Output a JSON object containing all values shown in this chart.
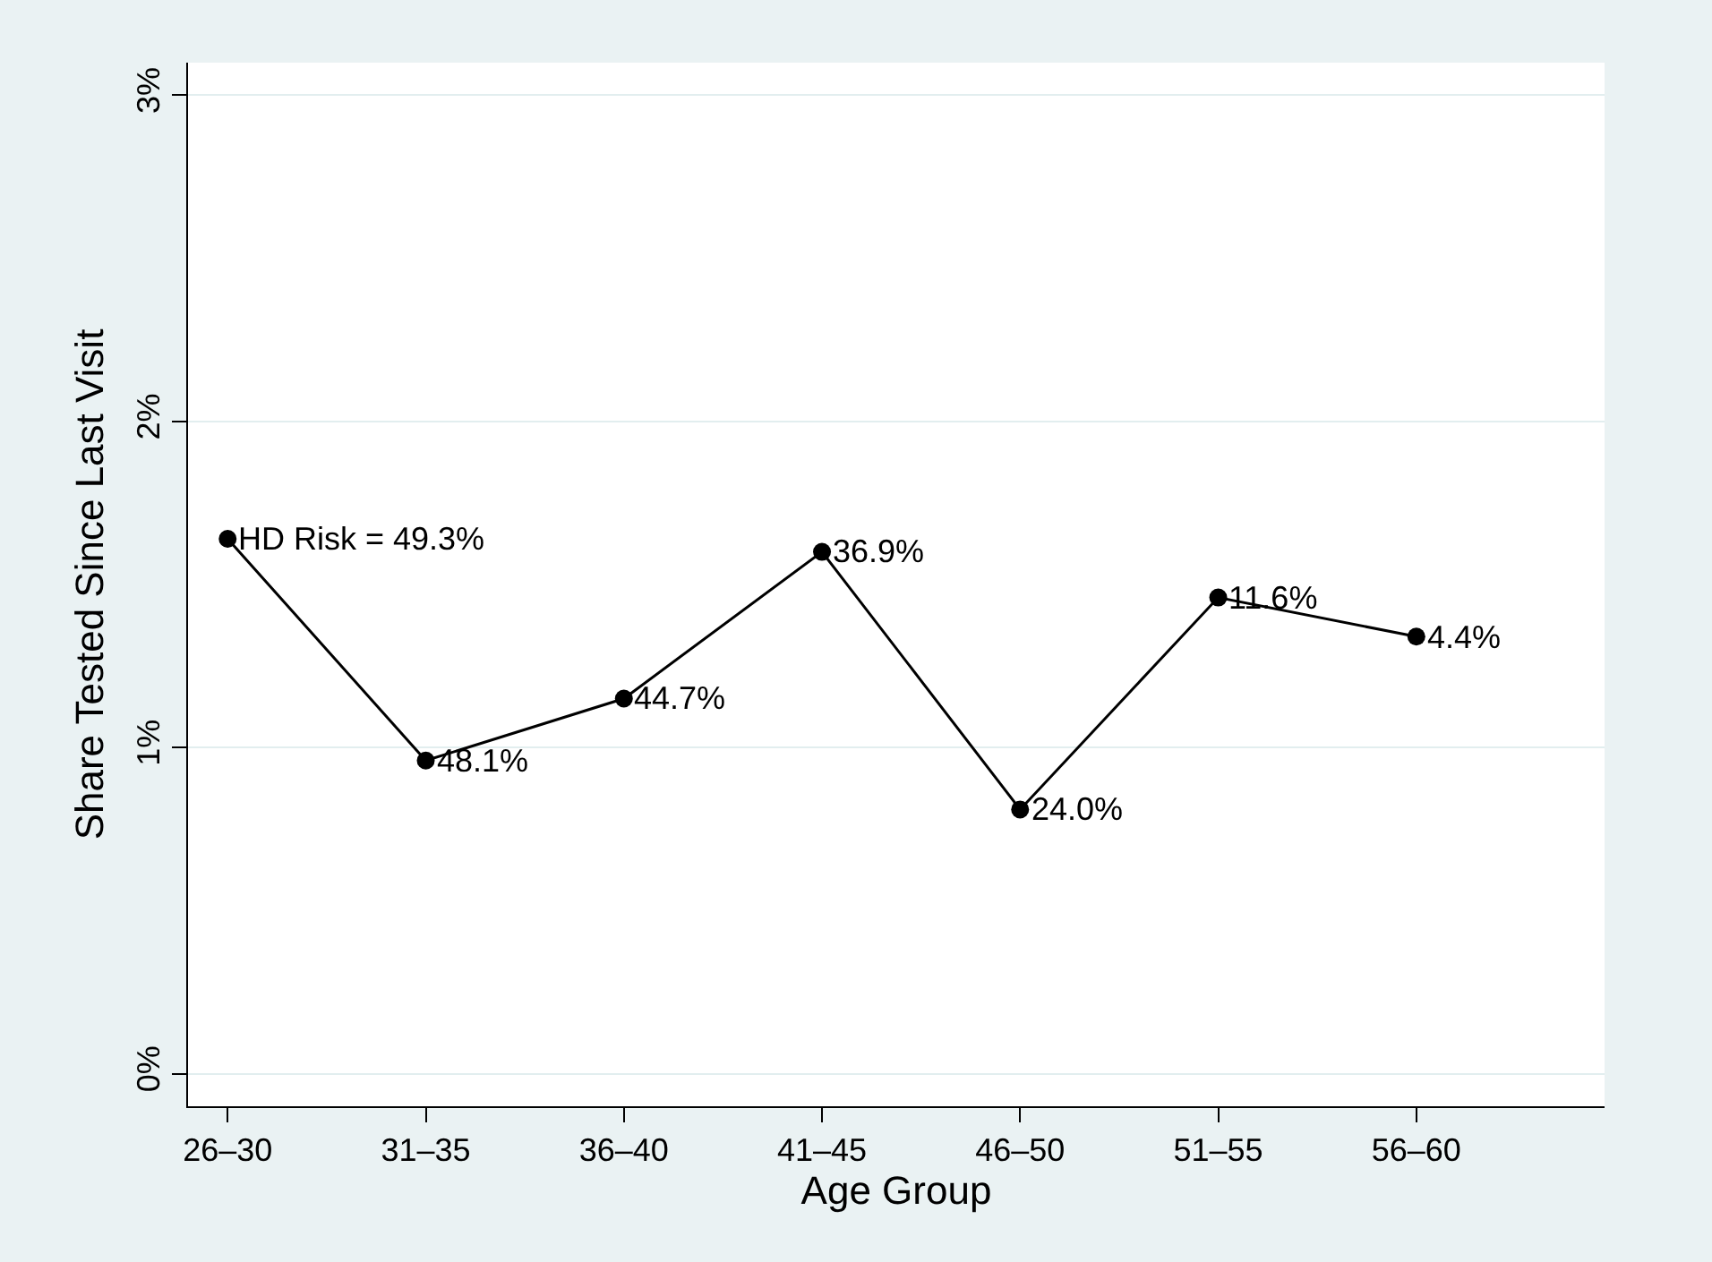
{
  "chart_data": {
    "type": "line",
    "xlabel": "Age Group",
    "ylabel": "Share Tested Since Last Visit",
    "categories": [
      "26–30",
      "31–35",
      "36–40",
      "41–45",
      "46–50",
      "51–55",
      "56–60"
    ],
    "series": [
      {
        "color": "#000000",
        "values": [
          1.64,
          0.96,
          1.15,
          1.6,
          0.81,
          1.46,
          1.34
        ]
      }
    ],
    "ylim": [
      -0.1,
      3.1
    ],
    "yticks": [
      {
        "value": 0,
        "label": "0%"
      },
      {
        "value": 1,
        "label": "1%"
      },
      {
        "value": 2,
        "label": "2%"
      },
      {
        "value": 3,
        "label": "3%"
      }
    ],
    "grid": "y",
    "marker": "circle",
    "line_style": "solid",
    "annotations": [
      {
        "text": "HD Risk = 49.3%",
        "x": "26–30",
        "y": 1.64
      },
      {
        "text": "48.1%",
        "x": "31–35",
        "y": 0.96
      },
      {
        "text": "44.7%",
        "x": "36–40",
        "y": 1.15
      },
      {
        "text": "36.9%",
        "x": "41–45",
        "y": 1.6
      },
      {
        "text": "24.0%",
        "x": "46–50",
        "y": 0.81
      },
      {
        "text": "11.6%",
        "x": "51–55",
        "y": 1.46
      },
      {
        "text": "4.4%",
        "x": "56–60",
        "y": 1.34
      }
    ]
  }
}
